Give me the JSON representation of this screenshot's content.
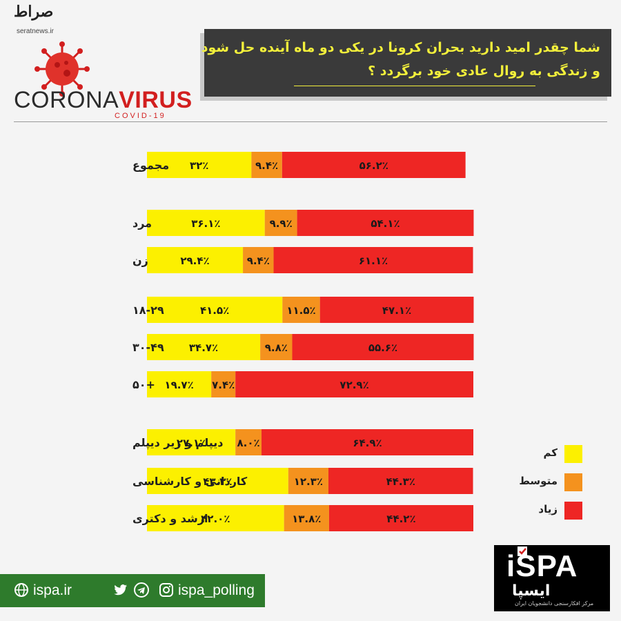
{
  "header": {
    "source_logo_text": "صراط",
    "source_url": "seratnews.ir",
    "brand_word_1": "CORONA",
    "brand_word_2": "VIRUS",
    "brand_sub": "COVID-19"
  },
  "title": {
    "line1": "شما چقدر امید دارید بحران کرونا در یکی دو ماه آینده حل شود",
    "line2": "و زندگی به روال عادی خود برگردد ؟"
  },
  "colors": {
    "low": "#fcf000",
    "medium": "#f4921e",
    "high": "#ee2624"
  },
  "chart_data": {
    "type": "bar",
    "orientation": "horizontal",
    "stacked": true,
    "percent_scale": true,
    "categories": [
      "مجموع",
      "مرد",
      "زن",
      "۱۸-۲۹",
      "۳۰-۴۹",
      "+۵۰",
      "دیپلم و زیر دیپلم",
      "کاردانی و کارشناسی",
      "ارشد و دکتری"
    ],
    "groups": [
      [
        0
      ],
      [
        1,
        2
      ],
      [
        3,
        4,
        5
      ],
      [
        6,
        7,
        8
      ]
    ],
    "series": [
      {
        "name": "کم",
        "color": "#fcf000",
        "values": [
          32,
          36.1,
          29.4,
          41.5,
          34.7,
          19.7,
          27.1,
          43.3,
          42.0
        ],
        "labels": [
          "۳۲٪",
          "۳۶.۱٪",
          "۲۹.۴٪",
          "۴۱.۵٪",
          "۳۴.۷٪",
          "۱۹.۷٪",
          "۲۷.۱٪",
          "۴۳.۳٪",
          "۴۲.۰٪"
        ]
      },
      {
        "name": "متوسط",
        "color": "#f4921e",
        "values": [
          9.4,
          9.9,
          9.4,
          11.5,
          9.8,
          7.4,
          8.0,
          12.3,
          13.8
        ],
        "labels": [
          "۹.۴٪",
          "۹.۹٪",
          "۹.۴٪",
          "۱۱.۵٪",
          "۹.۸٪",
          "۷.۴٪",
          "۸.۰٪",
          "۱۲.۳٪",
          "۱۳.۸٪"
        ]
      },
      {
        "name": "زیاد",
        "color": "#ee2624",
        "values": [
          56.2,
          54.1,
          61.1,
          47.1,
          55.6,
          72.9,
          64.9,
          44.3,
          44.2
        ],
        "labels": [
          "۵۶.۲٪",
          "۵۴.۱٪",
          "۶۱.۱٪",
          "۴۷.۱٪",
          "۵۵.۶٪",
          "۷۲.۹٪",
          "۶۴.۹٪",
          "۴۴.۳٪",
          "۴۴.۲٪"
        ]
      }
    ],
    "legend": {
      "position": "bottom-right",
      "entries": [
        "کم",
        "متوسط",
        "زیاد"
      ]
    },
    "grid": false
  },
  "footer": {
    "website": "ispa.ir",
    "social_handle": "ispa_polling",
    "icons": [
      "globe-icon",
      "twitter-icon",
      "telegram-icon",
      "instagram-icon"
    ]
  },
  "ispa_logo": {
    "latin": "iSPA",
    "persian": "ایسپا",
    "tagline": "مرکز افکارسنجی دانشجویان ایران"
  }
}
